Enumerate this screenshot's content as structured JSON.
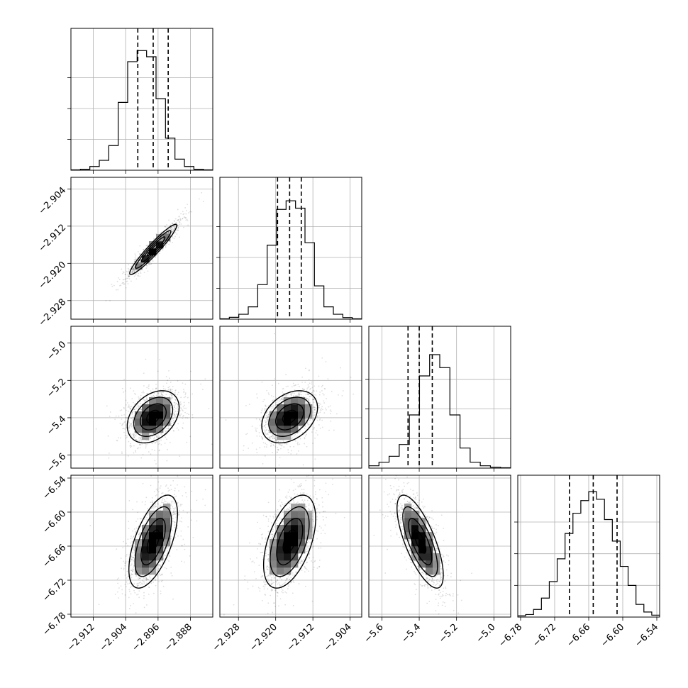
{
  "chart_data": {
    "type": "corner",
    "grid": true,
    "params": [
      {
        "ticks": [
          -2.912,
          -2.904,
          -2.896,
          -2.888
        ],
        "tick_labels": [
          "−2.912",
          "−2.904",
          "−2.896",
          "−2.888"
        ],
        "range": [
          -2.9175,
          -2.8825
        ],
        "quantiles": [
          -2.901,
          -2.8972,
          -2.8935
        ],
        "hist_y": [
          0.003,
          0.008,
          0.03,
          0.08,
          0.2,
          0.55,
          0.88,
          0.97,
          0.92,
          0.58,
          0.26,
          0.09,
          0.03,
          0.008,
          0.003
        ],
        "hist_ylim": [
          0,
          1.15
        ]
      },
      {
        "ticks": [
          -2.928,
          -2.92,
          -2.912,
          -2.904
        ],
        "tick_labels": [
          "−2.928",
          "−2.920",
          "−2.912",
          "−2.904"
        ],
        "range": [
          -2.932,
          -2.9015
        ],
        "quantiles": [
          -2.9196,
          -2.917,
          -2.9145
        ],
        "hist_y": [
          0.003,
          0.015,
          0.04,
          0.1,
          0.28,
          0.6,
          0.89,
          0.96,
          0.9,
          0.62,
          0.27,
          0.1,
          0.04,
          0.013,
          0.003
        ],
        "hist_ylim": [
          0,
          1.15
        ]
      },
      {
        "ticks": [
          -5.6,
          -5.4,
          -5.2,
          -5.0
        ],
        "tick_labels": [
          "−5.6",
          "−5.4",
          "−5.2",
          "−5.0"
        ],
        "range": [
          -5.67,
          -4.91
        ],
        "quantiles": [
          -5.46,
          -5.4,
          -5.33
        ],
        "hist_y": [
          0.02,
          0.05,
          0.1,
          0.2,
          0.45,
          0.78,
          0.96,
          0.85,
          0.45,
          0.17,
          0.05,
          0.02,
          0.008,
          0.003
        ],
        "hist_ylim": [
          0,
          1.2
        ]
      },
      {
        "ticks": [
          -6.78,
          -6.72,
          -6.66,
          -6.6,
          -6.54
        ],
        "tick_labels": [
          "−6.78",
          "−6.72",
          "−6.66",
          "−6.60",
          "−6.54"
        ],
        "range": [
          -6.785,
          -6.535
        ],
        "quantiles": [
          -6.694,
          -6.652,
          -6.61
        ],
        "hist_y": [
          0.01,
          0.02,
          0.06,
          0.15,
          0.28,
          0.46,
          0.66,
          0.82,
          0.92,
          0.99,
          0.93,
          0.77,
          0.6,
          0.4,
          0.25,
          0.1,
          0.04,
          0.015
        ],
        "hist_ylim": [
          0,
          1.12
        ]
      }
    ],
    "pairs": [
      {
        "row": 1,
        "col": 0,
        "mean": [
          -2.8972,
          -2.917
        ],
        "sd": [
          0.0029,
          0.0027
        ],
        "rho": 0.95
      },
      {
        "row": 2,
        "col": 0,
        "mean": [
          -2.8972,
          -5.395
        ],
        "sd": [
          0.0032,
          0.07
        ],
        "rho": 0.35
      },
      {
        "row": 2,
        "col": 1,
        "mean": [
          -2.917,
          -5.395
        ],
        "sd": [
          0.003,
          0.07
        ],
        "rho": 0.35
      },
      {
        "row": 3,
        "col": 0,
        "mean": [
          -2.8972,
          -6.652
        ],
        "sd": [
          0.003,
          0.041
        ],
        "rho": 0.6
      },
      {
        "row": 3,
        "col": 1,
        "mean": [
          -2.917,
          -6.652
        ],
        "sd": [
          0.0028,
          0.041
        ],
        "rho": 0.5
      },
      {
        "row": 3,
        "col": 2,
        "mean": [
          -5.395,
          -6.652
        ],
        "sd": [
          0.062,
          0.041
        ],
        "rho": -0.72
      }
    ]
  }
}
